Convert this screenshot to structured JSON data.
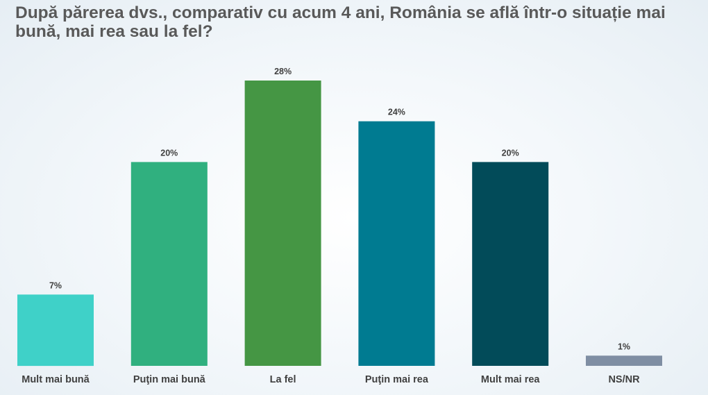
{
  "chart_data": {
    "type": "bar",
    "title": "După părerea dvs., comparativ cu acum 4 ani, România se află într-o situație mai bună, mai rea sau la fel?",
    "categories": [
      "Mult mai bună",
      "Puţin mai bună",
      "La fel",
      "Puţin mai rea",
      "Mult mai rea",
      "NS/NR"
    ],
    "values": [
      7,
      20,
      28,
      24,
      20,
      1
    ],
    "value_labels": [
      "7%",
      "20%",
      "28%",
      "24%",
      "20%",
      "1%"
    ],
    "colors": [
      "#3fd1c8",
      "#30b07f",
      "#459644",
      "#007b91",
      "#024b59",
      "#7f8ea3"
    ],
    "unit": "%",
    "xlabel": "",
    "ylabel": "",
    "ylim": [
      0,
      28
    ],
    "grid": false,
    "legend": "none"
  }
}
